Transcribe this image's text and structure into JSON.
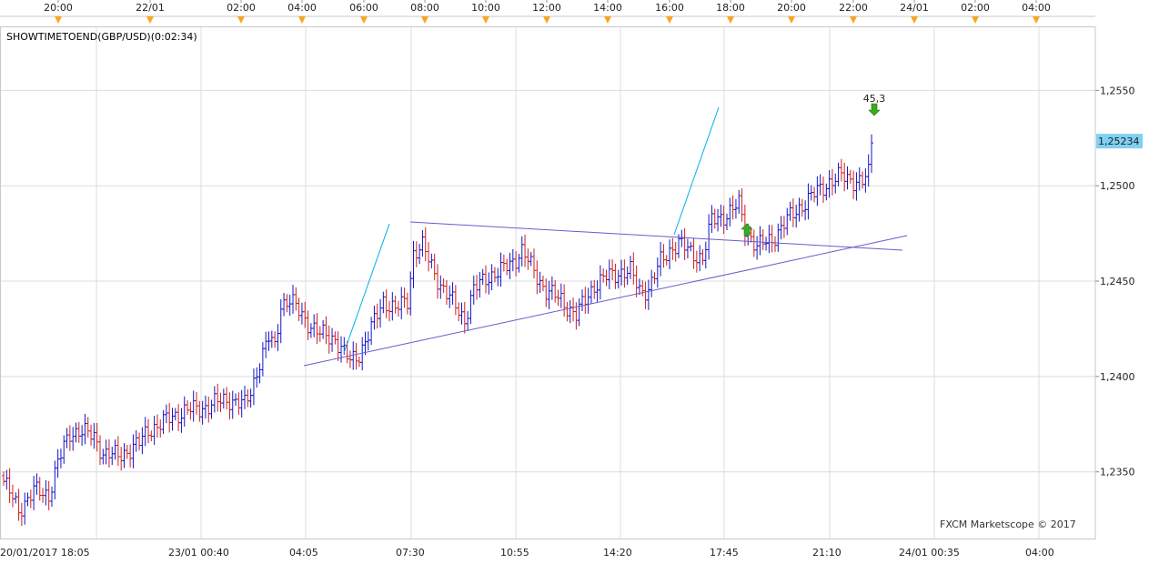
{
  "chart_data": {
    "type": "ohlc",
    "title": "SHOWTIMETOEND(GBP/USD)(0:02:34)",
    "watermark": "FXCM Marketscope © 2017",
    "price_label": "1,25234",
    "annotation_label": "45,3",
    "y_ticks": [
      "1,2550",
      "1,2500",
      "1,2450",
      "1,2400",
      "1,2350"
    ],
    "y_tick_values": [
      1.255,
      1.25,
      1.245,
      1.24,
      1.235
    ],
    "ylim": [
      1.2316,
      1.2585
    ],
    "last_price": 1.25234,
    "top_ticks": [
      "20:00",
      "22/01",
      "02:00",
      "04:00",
      "06:00",
      "08:00",
      "10:00",
      "12:00",
      "14:00",
      "16:00",
      "18:00",
      "20:00",
      "22:00",
      "24/01",
      "02:00",
      "04:00"
    ],
    "bottom_ticks": [
      "20/01/2017 18:05",
      "23/01 00:40",
      "04:05",
      "07:30",
      "10:55",
      "14:20",
      "17:45",
      "21:10",
      "24/01 00:35",
      "04:00"
    ],
    "grid": true,
    "colors": {
      "up": "#1414c8",
      "down": "#cc1f1f",
      "grid": "#dcdcdc",
      "trend_blue": "#00b0e8",
      "trend_purple": "#6a5acd",
      "price_box": "#7fd0f4",
      "marker_up": "#3aaa1e",
      "marker_orange": "#f6a623"
    },
    "close_anchors": [
      [
        0,
        1.2345
      ],
      [
        5,
        1.233
      ],
      [
        10,
        1.234
      ],
      [
        15,
        1.2338
      ],
      [
        18,
        1.2355
      ],
      [
        22,
        1.237
      ],
      [
        25,
        1.2372
      ],
      [
        30,
        1.2368
      ],
      [
        33,
        1.236
      ],
      [
        38,
        1.2358
      ],
      [
        42,
        1.2362
      ],
      [
        45,
        1.2365
      ],
      [
        48,
        1.2372
      ],
      [
        52,
        1.2375
      ],
      [
        55,
        1.2378
      ],
      [
        60,
        1.2382
      ],
      [
        65,
        1.2383
      ],
      [
        70,
        1.2386
      ],
      [
        75,
        1.2388
      ],
      [
        80,
        1.2385
      ],
      [
        82,
        1.2392
      ],
      [
        85,
        1.2408
      ],
      [
        88,
        1.242
      ],
      [
        90,
        1.2415
      ],
      [
        92,
        1.2438
      ],
      [
        95,
        1.244
      ],
      [
        100,
        1.243
      ],
      [
        105,
        1.2422
      ],
      [
        110,
        1.242
      ],
      [
        113,
        1.2412
      ],
      [
        115,
        1.2408
      ],
      [
        118,
        1.2412
      ],
      [
        122,
        1.2425
      ],
      [
        126,
        1.244
      ],
      [
        130,
        1.2435
      ],
      [
        134,
        1.244
      ],
      [
        136,
        1.2465
      ],
      [
        139,
        1.2468
      ],
      [
        142,
        1.2458
      ],
      [
        145,
        1.2448
      ],
      [
        147,
        1.2443
      ],
      [
        150,
        1.2437
      ],
      [
        153,
        1.243
      ],
      [
        156,
        1.2445
      ],
      [
        160,
        1.2452
      ],
      [
        165,
        1.2455
      ],
      [
        170,
        1.2462
      ],
      [
        172,
        1.2466
      ],
      [
        176,
        1.2455
      ],
      [
        180,
        1.2445
      ],
      [
        185,
        1.244
      ],
      [
        190,
        1.2432
      ],
      [
        193,
        1.244
      ],
      [
        196,
        1.2448
      ],
      [
        200,
        1.2452
      ],
      [
        205,
        1.2455
      ],
      [
        208,
        1.2455
      ],
      [
        211,
        1.2445
      ],
      [
        214,
        1.2446
      ],
      [
        218,
        1.246
      ],
      [
        222,
        1.2468
      ],
      [
        224,
        1.247
      ],
      [
        228,
        1.2465
      ],
      [
        232,
        1.2462
      ],
      [
        235,
        1.2482
      ],
      [
        240,
        1.2485
      ],
      [
        244,
        1.249
      ],
      [
        246,
        1.2478
      ],
      [
        250,
        1.2468
      ],
      [
        255,
        1.2472
      ],
      [
        260,
        1.2482
      ],
      [
        265,
        1.249
      ],
      [
        270,
        1.2497
      ],
      [
        274,
        1.2502
      ],
      [
        278,
        1.2505
      ],
      [
        282,
        1.2503
      ],
      [
        285,
        1.2502
      ],
      [
        287,
        1.2506
      ],
      [
        288,
        1.2523
      ]
    ]
  }
}
